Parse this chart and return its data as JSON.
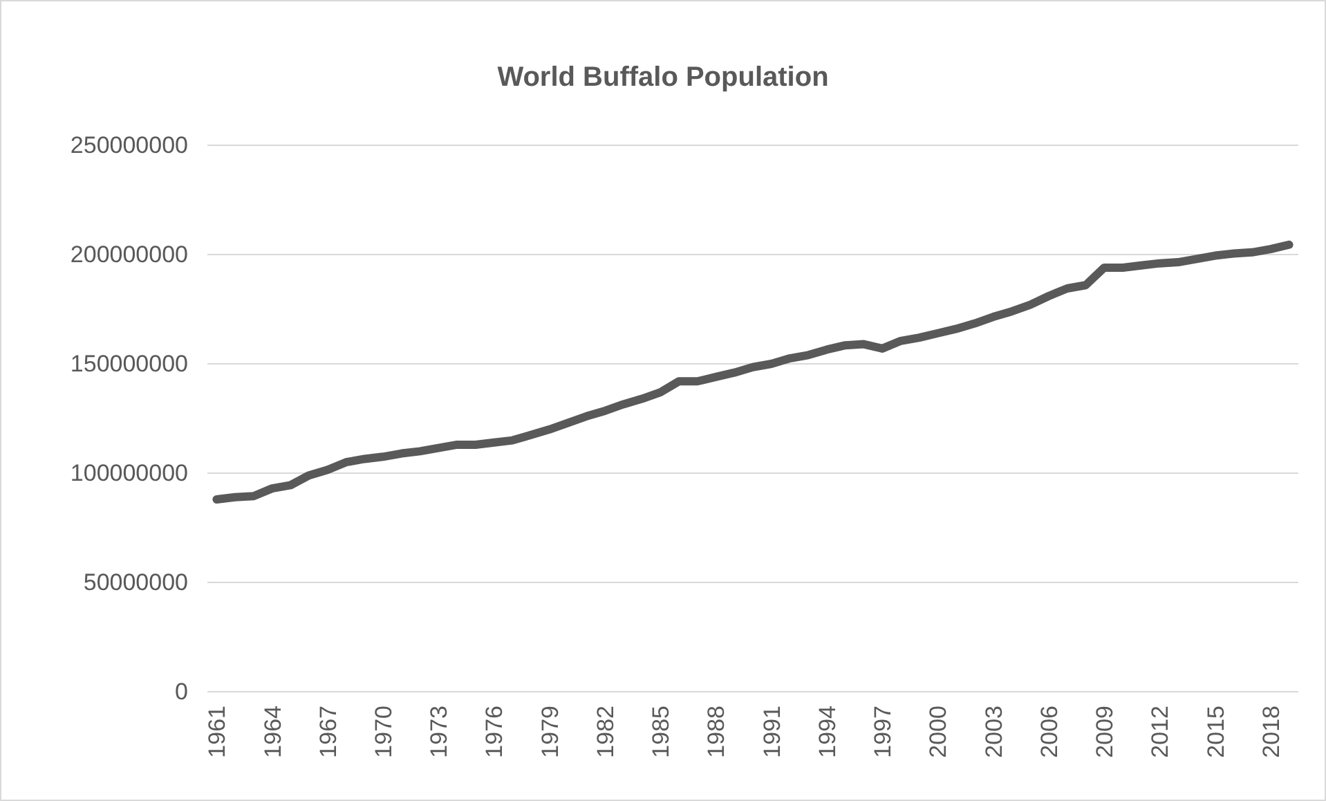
{
  "chart_data": {
    "type": "line",
    "title": "World Buffalo Population",
    "categories": [
      "1961",
      null,
      null,
      "1964",
      null,
      null,
      "1967",
      null,
      null,
      "1970",
      null,
      null,
      "1973",
      null,
      null,
      "1976",
      null,
      null,
      "1979",
      null,
      null,
      "1982",
      null,
      null,
      "1985",
      null,
      null,
      "1988",
      null,
      null,
      "1991",
      null,
      null,
      "1994",
      null,
      null,
      "1997",
      null,
      null,
      "2000",
      null,
      null,
      "2003",
      null,
      null,
      "2006",
      null,
      null,
      "2009",
      null,
      null,
      "2012",
      null,
      null,
      "2015",
      null,
      null,
      "2018",
      null
    ],
    "series": [
      {
        "color": "#595959",
        "values": [
          88000000,
          89000000,
          89500000,
          93000000,
          94500000,
          99000000,
          101500000,
          105000000,
          106500000,
          107500000,
          109000000,
          110000000,
          111500000,
          113000000,
          113000000,
          114000000,
          115000000,
          117500000,
          120000000,
          123000000,
          126000000,
          128500000,
          131500000,
          134000000,
          137000000,
          142000000,
          142000000,
          144000000,
          146000000,
          148500000,
          150000000,
          152500000,
          154000000,
          156500000,
          158500000,
          159000000,
          157000000,
          160500000,
          162000000,
          164000000,
          166000000,
          168500000,
          171500000,
          174000000,
          177000000,
          181000000,
          184500000,
          186000000,
          194000000,
          194000000,
          195000000,
          196000000,
          196500000,
          198000000,
          199500000,
          200500000,
          201000000,
          202500000,
          204500000
        ]
      }
    ],
    "ylim": [
      0,
      250000000
    ],
    "yticks": [
      0,
      50000000,
      100000000,
      150000000,
      200000000,
      250000000
    ],
    "grid": "y",
    "line_style": "solid",
    "marker": "none"
  }
}
